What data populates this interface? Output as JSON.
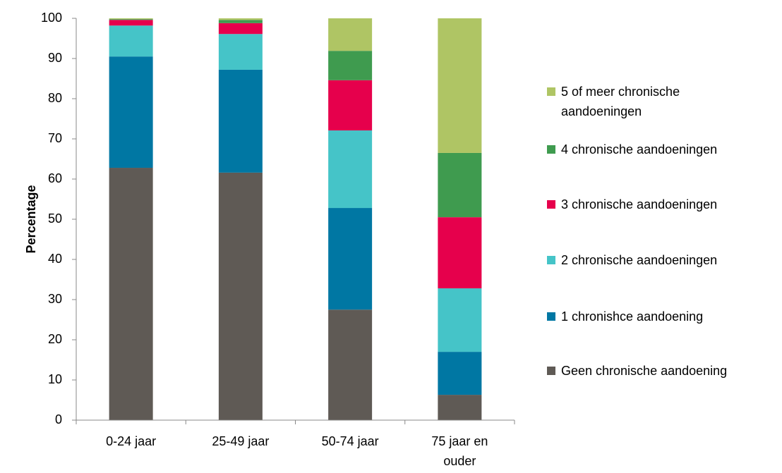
{
  "chart_data": {
    "type": "stacked_bar",
    "y_label": "Percentage",
    "categories": [
      "0-24 jaar",
      "25-49 jaar",
      "50-74 jaar",
      "75 jaar en ouder"
    ],
    "series": [
      {
        "name": "Geen chronische aandoening",
        "color": "#5f5a55",
        "values": [
          62.8,
          61.6,
          27.5,
          6.3
        ]
      },
      {
        "name": "1 chronishce aandoening",
        "color": "#0077a3",
        "values": [
          27.7,
          25.6,
          25.3,
          10.7
        ]
      },
      {
        "name": "2 chronische aandoeningen",
        "color": "#45c4c8",
        "values": [
          7.7,
          8.9,
          19.3,
          15.8
        ]
      },
      {
        "name": "3 chronische aandoeningen",
        "color": "#e6004c",
        "values": [
          1.4,
          2.7,
          12.5,
          17.7
        ]
      },
      {
        "name": "4 chronische aandoeningen",
        "color": "#3f9b4f",
        "values": [
          0.2,
          0.8,
          7.3,
          16.0
        ]
      },
      {
        "name": "5 of meer chronische aandoeningen",
        "color": "#afc564",
        "values": [
          0.2,
          0.4,
          8.1,
          33.5
        ]
      }
    ],
    "ylim": [
      0,
      100
    ],
    "yticks": [
      0,
      10,
      20,
      30,
      40,
      50,
      60,
      70,
      80,
      90,
      100
    ],
    "legend": "right"
  }
}
